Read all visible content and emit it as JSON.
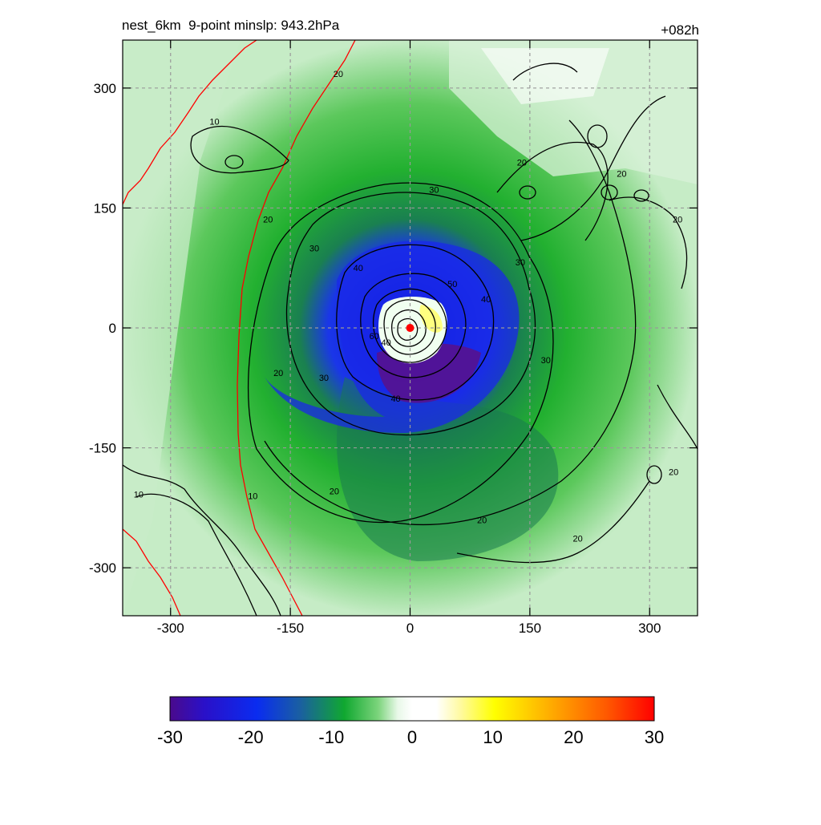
{
  "header": {
    "title_left": "nest_6km  9-point minslp: 943.2hPa",
    "title_right": "+082h"
  },
  "chart_data": {
    "type": "heatmap",
    "title": "nest_6km  9-point minslp: 943.2hPa",
    "forecast_hour": "+082h",
    "xlabel": "",
    "ylabel": "",
    "xlim": [
      -360,
      360
    ],
    "ylim": [
      -360,
      360
    ],
    "x_ticks": [
      -300,
      -150,
      0,
      150,
      300
    ],
    "y_ticks": [
      300,
      150,
      0,
      -150,
      -300
    ],
    "x_tick_labels": [
      "-300",
      "-150",
      "0",
      "150",
      "300"
    ],
    "y_tick_labels": [
      "300",
      "150",
      "0",
      "-150",
      "-300"
    ],
    "grid": true,
    "colorbar": {
      "min": -30,
      "max": 30,
      "ticks": [
        -30,
        -20,
        -10,
        0,
        10,
        20,
        30
      ],
      "tick_labels": [
        "-30",
        "-20",
        "-10",
        "0",
        "10",
        "20",
        "30"
      ]
    },
    "contour_labels": [
      {
        "text": "20",
        "x": -90,
        "y": 318
      },
      {
        "text": "10",
        "x": -245,
        "y": 258
      },
      {
        "text": "30",
        "x": 30,
        "y": 173
      },
      {
        "text": "20",
        "x": 140,
        "y": 207
      },
      {
        "text": "20",
        "x": 265,
        "y": 193
      },
      {
        "text": "20",
        "x": 335,
        "y": 136
      },
      {
        "text": "20",
        "x": -178,
        "y": 136
      },
      {
        "text": "30",
        "x": -120,
        "y": 100
      },
      {
        "text": "30",
        "x": 138,
        "y": 82
      },
      {
        "text": "40",
        "x": -65,
        "y": 75
      },
      {
        "text": "50",
        "x": 53,
        "y": 55
      },
      {
        "text": "40",
        "x": 95,
        "y": 36
      },
      {
        "text": "60",
        "x": -45,
        "y": -10
      },
      {
        "text": "40",
        "x": -30,
        "y": -18
      },
      {
        "text": "30",
        "x": 170,
        "y": -40
      },
      {
        "text": "30",
        "x": -108,
        "y": -62
      },
      {
        "text": "20",
        "x": -165,
        "y": -56
      },
      {
        "text": "40",
        "x": -18,
        "y": -88
      },
      {
        "text": "20",
        "x": 330,
        "y": -180
      },
      {
        "text": "10",
        "x": -340,
        "y": -208
      },
      {
        "text": "10",
        "x": -197,
        "y": -210
      },
      {
        "text": "20",
        "x": -95,
        "y": -204
      },
      {
        "text": "20",
        "x": 90,
        "y": -240
      },
      {
        "text": "20",
        "x": 210,
        "y": -263
      }
    ],
    "storm_center": {
      "x": 0,
      "y": 0
    }
  }
}
